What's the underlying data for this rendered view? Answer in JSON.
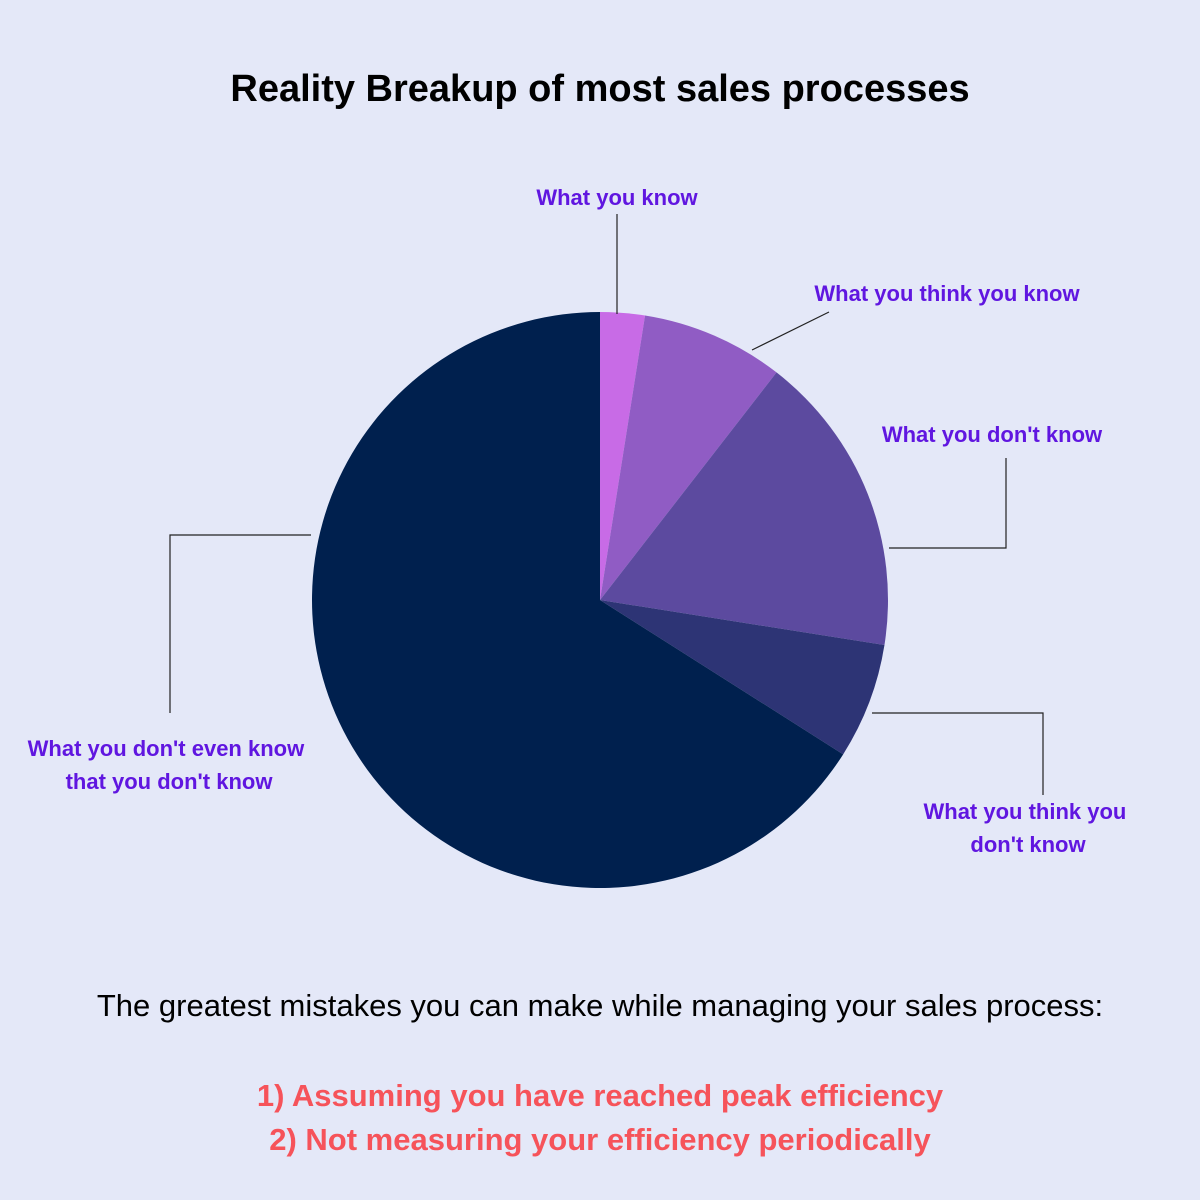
{
  "title": "Reality Breakup of most sales processes",
  "chart_data": {
    "type": "pie",
    "title": "Reality Breakup of most sales processes",
    "slices": [
      {
        "label": "What you know",
        "value": 2.5,
        "color": "#c86be6"
      },
      {
        "label": "What you think you know",
        "value": 8,
        "color": "#905cc4"
      },
      {
        "label": "What you don't know",
        "value": 17,
        "color": "#5c4a9f"
      },
      {
        "label": "What you think you don't know",
        "value": 6.5,
        "color": "#2d3475"
      },
      {
        "label": "What you don't even know that you don't know",
        "value": 66,
        "color": "#00204e"
      }
    ],
    "label_color": "#6016e0"
  },
  "labels": {
    "know": [
      "What you know"
    ],
    "think_know": [
      "What you think you know"
    ],
    "dont_know": [
      "What you don't know"
    ],
    "think_dont_know": [
      "What you think you",
      "don't know"
    ],
    "dont_even_know": [
      "What you don't even know",
      "that you don't know"
    ]
  },
  "footer": {
    "intro": "The greatest mistakes you can make while managing your sales process:",
    "mistakes": [
      "1) Assuming you have reached peak efficiency",
      "2) Not measuring your efficiency periodically"
    ],
    "mistake_color": "#f6535a"
  }
}
